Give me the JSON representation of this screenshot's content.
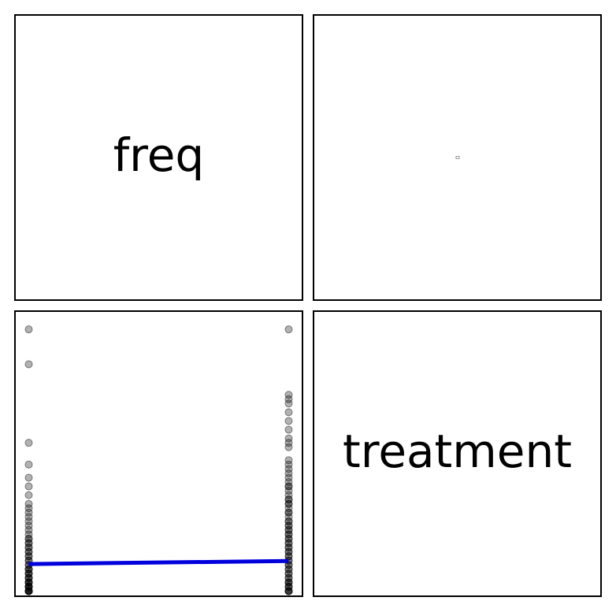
{
  "diagonal": {
    "top_left": "freq",
    "bottom_right": "treatment"
  },
  "colors": {
    "points": "#000000",
    "fit_line": "#0000dd",
    "frame": "#000000"
  },
  "chart_data": {
    "type": "scatter",
    "layout": "pair-plot 2x2",
    "variables": [
      "freq",
      "treatment"
    ],
    "x": {
      "name": "treatment",
      "xlim": [
        -0.05,
        1.05
      ]
    },
    "y": {
      "name": "freq",
      "ylim": [
        -1,
        64
      ]
    },
    "grid": false,
    "series": [
      {
        "group": 0,
        "x_value": 0,
        "y_values": [
          60,
          52,
          34,
          29,
          26,
          24,
          22,
          20,
          19,
          18,
          17,
          16,
          15,
          14,
          13,
          12,
          12,
          11,
          11,
          10,
          10,
          9,
          9,
          8,
          8,
          7,
          7,
          6,
          6,
          5,
          5,
          5,
          4,
          4,
          4,
          3,
          3,
          3,
          2,
          2,
          2,
          2,
          1,
          1,
          1,
          1,
          1,
          0,
          0,
          0,
          0,
          0,
          0
        ]
      },
      {
        "group": 1,
        "x_value": 1,
        "y_values": [
          60,
          45,
          44,
          43,
          41,
          39,
          37,
          35,
          34,
          33,
          30,
          29,
          28,
          27,
          26,
          25,
          24,
          24,
          23,
          22,
          21,
          21,
          20,
          20,
          19,
          18,
          18,
          17,
          16,
          16,
          15,
          15,
          14,
          14,
          13,
          13,
          12,
          12,
          11,
          11,
          10,
          10,
          9,
          9,
          8,
          8,
          7,
          7,
          6,
          6,
          5,
          5,
          4,
          4,
          3,
          3,
          2,
          2,
          2,
          1,
          1,
          1,
          0,
          0,
          0,
          0
        ]
      }
    ],
    "fit_line": {
      "x": [
        0,
        1
      ],
      "y": [
        6.2,
        6.9
      ]
    }
  }
}
